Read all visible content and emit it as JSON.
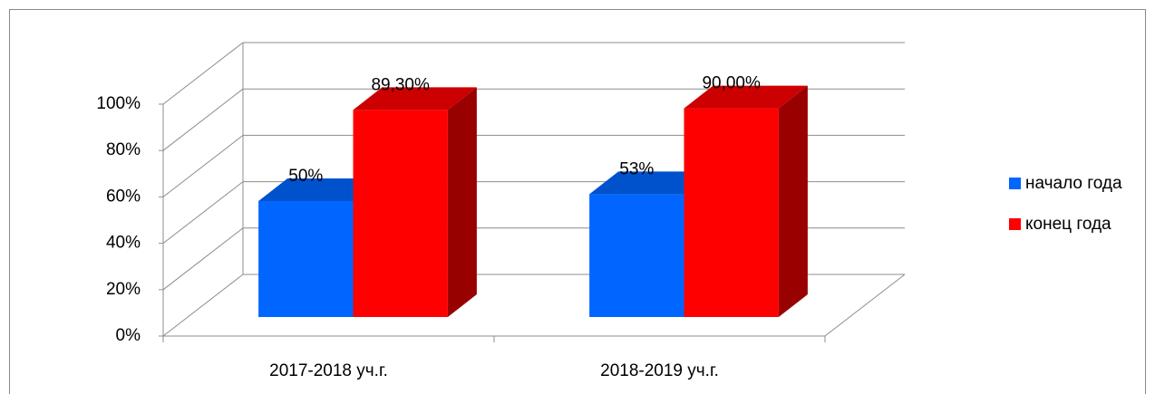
{
  "chart_data": {
    "type": "bar3d",
    "categories": [
      "2017-2018 уч.г.",
      "2018-2019 уч.г."
    ],
    "series": [
      {
        "name": "начало года",
        "color": "#0066ff",
        "values": [
          50,
          53
        ],
        "value_labels": [
          "50%",
          "53%"
        ]
      },
      {
        "name": "конец года",
        "color": "#ff0000",
        "values": [
          89.3,
          90
        ],
        "value_labels": [
          "89,30%",
          "90,00%"
        ]
      }
    ],
    "ylim": [
      0,
      100
    ],
    "yticks": [
      {
        "value": 0,
        "label": "0%"
      },
      {
        "value": 20,
        "label": "20%"
      },
      {
        "value": 40,
        "label": "40%"
      },
      {
        "value": 60,
        "label": "60%"
      },
      {
        "value": 80,
        "label": "80%"
      },
      {
        "value": 100,
        "label": "100%"
      }
    ],
    "grid": true,
    "legend": "right"
  }
}
